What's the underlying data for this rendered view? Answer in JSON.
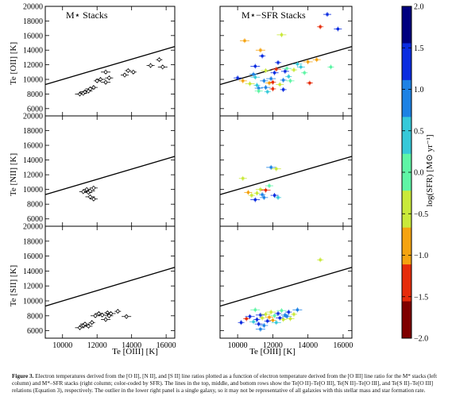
{
  "caption": {
    "label": "Figure 3.",
    "text": "Electron temperatures derived from the [O II], [N II], and [S II] line ratios plotted as a function of electron temperature derived from the [O III] line ratio for the M* stacks (left column) and M*–SFR stacks (right column; color-coded by SFR). The lines in the top, middle, and bottom rows show the Te[O II]–Te[O III], Te[N II]–Te[O III], and Te[S II]–Te[O III] relations (Equation 3), respectively. The outlier in the lower right panel is a single galaxy, so it may not be representative of all galaxies with this stellar mass and star formation rate."
  },
  "chart_data": {
    "type": "scatter",
    "panel_titles": [
      "M⋆ Stacks",
      "M⋆−SFR Stacks"
    ],
    "xlabel": "Te [OIII] [K]",
    "xlim": [
      9000,
      16500
    ],
    "ylim": [
      5000,
      20000
    ],
    "xticks": [
      10000,
      12000,
      14000,
      16000
    ],
    "yticks": [
      6000,
      8000,
      10000,
      12000,
      14000,
      16000,
      18000,
      20000
    ],
    "ylabels": [
      "Te [OII] [K]",
      "Te [NII] [K]",
      "Te [SII] [K]"
    ],
    "grid": false,
    "relation_line": {
      "x": [
        9000,
        16500
      ],
      "y": [
        9300,
        14500
      ]
    },
    "colorbar": {
      "label": "log(SFR) [M⊙ yr⁻¹]",
      "range": [
        -2.0,
        2.0
      ],
      "ticks": [
        "2.0",
        "1.5",
        "1.0",
        "0.5",
        "0.0",
        "−0.5",
        "−1.0",
        "−1.5",
        "−2.0"
      ],
      "colors": [
        "#7f0000",
        "#e62c0b",
        "#f5a310",
        "#c9e93a",
        "#5ff5a6",
        "#36c9d9",
        "#1d82e5",
        "#0a2ce0",
        "#00007f"
      ]
    },
    "panels": {
      "left_OII": [
        [
          11000,
          8000
        ],
        [
          11200,
          8100
        ],
        [
          11300,
          8300
        ],
        [
          11500,
          8400
        ],
        [
          11600,
          8700
        ],
        [
          11800,
          8900
        ],
        [
          12000,
          9800
        ],
        [
          12200,
          10000
        ],
        [
          12500,
          9600
        ],
        [
          12700,
          10200
        ],
        [
          12500,
          11000
        ],
        [
          13600,
          10600
        ],
        [
          13800,
          11200
        ],
        [
          14100,
          11000
        ],
        [
          15100,
          11900
        ],
        [
          15600,
          12700
        ],
        [
          15800,
          11700
        ]
      ],
      "left_NII": [
        [
          11200,
          9700
        ],
        [
          11400,
          10000
        ],
        [
          11500,
          9600
        ],
        [
          11600,
          9800
        ],
        [
          11800,
          10200
        ],
        [
          11600,
          9000
        ],
        [
          11800,
          8700
        ]
      ],
      "left_SII": [
        [
          11000,
          6400
        ],
        [
          11200,
          6700
        ],
        [
          11300,
          6900
        ],
        [
          11500,
          6600
        ],
        [
          11700,
          7100
        ],
        [
          11900,
          8000
        ],
        [
          12100,
          8300
        ],
        [
          12300,
          8100
        ],
        [
          12600,
          8400
        ],
        [
          12800,
          8300
        ],
        [
          12500,
          7500
        ],
        [
          12700,
          8000
        ],
        [
          13200,
          8600
        ],
        [
          13700,
          7900
        ]
      ],
      "right_OII": [
        [
          10000,
          10200
        ],
        [
          10300,
          9800
        ],
        [
          10400,
          15300
        ],
        [
          10700,
          9400
        ],
        [
          10900,
          10700
        ],
        [
          11000,
          11800
        ],
        [
          11100,
          9200
        ],
        [
          11200,
          8800
        ],
        [
          11300,
          14000
        ],
        [
          11400,
          13200
        ],
        [
          11500,
          9800
        ],
        [
          11600,
          11200
        ],
        [
          11700,
          8300
        ],
        [
          11800,
          9500
        ],
        [
          11900,
          10100
        ],
        [
          12000,
          8700
        ],
        [
          12100,
          10900
        ],
        [
          12200,
          11400
        ],
        [
          12300,
          12300
        ],
        [
          12400,
          9300
        ],
        [
          12500,
          16100
        ],
        [
          12600,
          8600
        ],
        [
          12700,
          11100
        ],
        [
          12800,
          11500
        ],
        [
          12900,
          10400
        ],
        [
          13000,
          9800
        ],
        [
          13200,
          11300
        ],
        [
          13400,
          12100
        ],
        [
          13600,
          11700
        ],
        [
          13800,
          10900
        ],
        [
          14000,
          12400
        ],
        [
          14100,
          9500
        ],
        [
          14500,
          12700
        ],
        [
          14700,
          17200
        ],
        [
          15100,
          18900
        ],
        [
          15300,
          11700
        ],
        [
          15700,
          16900
        ],
        [
          11200,
          8400
        ],
        [
          11000,
          10300
        ],
        [
          11600,
          8900
        ],
        [
          12000,
          9600
        ],
        [
          12600,
          9900
        ]
      ],
      "right_NII": [
        [
          10300,
          11500
        ],
        [
          10600,
          9600
        ],
        [
          10800,
          9200
        ],
        [
          11000,
          8600
        ],
        [
          11100,
          9500
        ],
        [
          11300,
          10000
        ],
        [
          11500,
          8900
        ],
        [
          11600,
          9900
        ],
        [
          11800,
          10500
        ],
        [
          11900,
          13000
        ],
        [
          12100,
          9200
        ],
        [
          12200,
          12800
        ],
        [
          12300,
          8900
        ],
        [
          11400,
          9300
        ]
      ],
      "right_SII": [
        [
          10200,
          7100
        ],
        [
          10500,
          7600
        ],
        [
          10700,
          7900
        ],
        [
          10900,
          7200
        ],
        [
          11000,
          8800
        ],
        [
          11100,
          7500
        ],
        [
          11200,
          6900
        ],
        [
          11300,
          8100
        ],
        [
          11400,
          7700
        ],
        [
          11500,
          6700
        ],
        [
          11600,
          8200
        ],
        [
          11700,
          7300
        ],
        [
          11800,
          7800
        ],
        [
          11900,
          8500
        ],
        [
          12000,
          7400
        ],
        [
          12100,
          8000
        ],
        [
          12200,
          7100
        ],
        [
          12300,
          8300
        ],
        [
          12400,
          7700
        ],
        [
          12500,
          8700
        ],
        [
          12600,
          7500
        ],
        [
          12700,
          8100
        ],
        [
          12800,
          7900
        ],
        [
          12900,
          8500
        ],
        [
          13000,
          7600
        ],
        [
          13200,
          8200
        ],
        [
          13400,
          8800
        ],
        [
          14700,
          15500
        ],
        [
          11300,
          6200
        ]
      ]
    }
  }
}
